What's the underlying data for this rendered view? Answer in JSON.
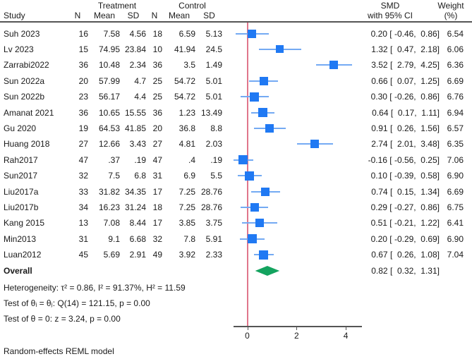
{
  "header": {
    "study": "Study",
    "treatment": "Treatment",
    "control": "Control",
    "n": "N",
    "mean": "Mean",
    "sd": "SD",
    "smd_line1": "SMD",
    "smd_line2": "with 95% CI",
    "weight_line1": "Weight",
    "weight_line2": "(%)"
  },
  "chart_data": {
    "type": "forest",
    "effect_measure": "SMD",
    "x_ticks": [
      0,
      2,
      4
    ],
    "x_range": [
      -0.6,
      4.6
    ],
    "zero_line": 0,
    "studies": [
      {
        "name": "Suh 2023",
        "t_n": "16",
        "t_mean": "7.58",
        "t_sd": "4.56",
        "c_n": "18",
        "c_mean": "6.59",
        "c_sd": "5.13",
        "est": 0.2,
        "lo": -0.46,
        "hi": 0.86,
        "smd_label": "0.20 [ -0.46,  0.86]",
        "weight": "6.54",
        "weight_num": 6.54
      },
      {
        "name": "Lv 2023",
        "t_n": "15",
        "t_mean": "74.95",
        "t_sd": "23.84",
        "c_n": "10",
        "c_mean": "41.94",
        "c_sd": "24.5",
        "est": 1.32,
        "lo": 0.47,
        "hi": 2.18,
        "smd_label": "1.32 [  0.47,  2.18]",
        "weight": "6.06",
        "weight_num": 6.06
      },
      {
        "name": "Zarrabi2022",
        "t_n": "36",
        "t_mean": "10.48",
        "t_sd": "2.34",
        "c_n": "36",
        "c_mean": "3.5",
        "c_sd": "1.49",
        "est": 3.52,
        "lo": 2.79,
        "hi": 4.25,
        "smd_label": "3.52 [  2.79,  4.25]",
        "weight": "6.36",
        "weight_num": 6.36
      },
      {
        "name": "Sun 2022a",
        "t_n": "20",
        "t_mean": "57.99",
        "t_sd": "4.7",
        "c_n": "25",
        "c_mean": "54.72",
        "c_sd": "5.01",
        "est": 0.66,
        "lo": 0.07,
        "hi": 1.25,
        "smd_label": "0.66 [  0.07,  1.25]",
        "weight": "6.69",
        "weight_num": 6.69
      },
      {
        "name": "Sun 2022b",
        "t_n": "23",
        "t_mean": "56.17",
        "t_sd": "4.4",
        "c_n": "25",
        "c_mean": "54.72",
        "c_sd": "5.01",
        "est": 0.3,
        "lo": -0.26,
        "hi": 0.86,
        "smd_label": "0.30 [ -0.26,  0.86]",
        "weight": "6.76",
        "weight_num": 6.76
      },
      {
        "name": "Amanat 2021",
        "t_n": "36",
        "t_mean": "10.65",
        "t_sd": "15.55",
        "c_n": "36",
        "c_mean": "1.23",
        "c_sd": "13.49",
        "est": 0.64,
        "lo": 0.17,
        "hi": 1.11,
        "smd_label": "0.64 [  0.17,  1.11]",
        "weight": "6.94",
        "weight_num": 6.94
      },
      {
        "name": "Gu 2020",
        "t_n": "19",
        "t_mean": "64.53",
        "t_sd": "41.85",
        "c_n": "20",
        "c_mean": "36.8",
        "c_sd": "8.8",
        "est": 0.91,
        "lo": 0.26,
        "hi": 1.56,
        "smd_label": "0.91 [  0.26,  1.56]",
        "weight": "6.57",
        "weight_num": 6.57
      },
      {
        "name": "Huang 2018",
        "t_n": "27",
        "t_mean": "12.66",
        "t_sd": "3.43",
        "c_n": "27",
        "c_mean": "4.81",
        "c_sd": "2.03",
        "est": 2.74,
        "lo": 2.01,
        "hi": 3.48,
        "smd_label": "2.74 [  2.01,  3.48]",
        "weight": "6.35",
        "weight_num": 6.35
      },
      {
        "name": "Rah2017",
        "t_n": "47",
        "t_mean": ".37",
        "t_sd": ".19",
        "c_n": "47",
        "c_mean": ".4",
        "c_sd": ".19",
        "est": -0.16,
        "lo": -0.56,
        "hi": 0.25,
        "smd_label": "-0.16 [ -0.56,  0.25]",
        "weight": "7.06",
        "weight_num": 7.06
      },
      {
        "name": "Sun2017",
        "t_n": "32",
        "t_mean": "7.5",
        "t_sd": "6.8",
        "c_n": "31",
        "c_mean": "6.9",
        "c_sd": "5.5",
        "est": 0.1,
        "lo": -0.39,
        "hi": 0.58,
        "smd_label": "0.10 [ -0.39,  0.58]",
        "weight": "6.90",
        "weight_num": 6.9
      },
      {
        "name": "Liu2017a",
        "t_n": "33",
        "t_mean": "31.82",
        "t_sd": "34.35",
        "c_n": "17",
        "c_mean": "7.25",
        "c_sd": "28.76",
        "est": 0.74,
        "lo": 0.15,
        "hi": 1.34,
        "smd_label": "0.74 [  0.15,  1.34]",
        "weight": "6.69",
        "weight_num": 6.69
      },
      {
        "name": "Liu2017b",
        "t_n": "34",
        "t_mean": "16.23",
        "t_sd": "31.24",
        "c_n": "18",
        "c_mean": "7.25",
        "c_sd": "28.76",
        "est": 0.29,
        "lo": -0.27,
        "hi": 0.86,
        "smd_label": "0.29 [ -0.27,  0.86]",
        "weight": "6.75",
        "weight_num": 6.75
      },
      {
        "name": "Kang 2015",
        "t_n": "13",
        "t_mean": "7.08",
        "t_sd": "8.44",
        "c_n": "17",
        "c_mean": "3.85",
        "c_sd": "3.75",
        "est": 0.51,
        "lo": -0.21,
        "hi": 1.22,
        "smd_label": "0.51 [ -0.21,  1.22]",
        "weight": "6.41",
        "weight_num": 6.41
      },
      {
        "name": "Min2013",
        "t_n": "31",
        "t_mean": "9.1",
        "t_sd": "6.68",
        "c_n": "32",
        "c_mean": "7.8",
        "c_sd": "5.91",
        "est": 0.2,
        "lo": -0.29,
        "hi": 0.69,
        "smd_label": "0.20 [ -0.29,  0.69]",
        "weight": "6.90",
        "weight_num": 6.9
      },
      {
        "name": "Luan2012",
        "t_n": "45",
        "t_mean": "5.69",
        "t_sd": "2.91",
        "c_n": "49",
        "c_mean": "3.92",
        "c_sd": "2.33",
        "est": 0.67,
        "lo": 0.26,
        "hi": 1.08,
        "smd_label": "0.67 [  0.26,  1.08]",
        "weight": "7.04",
        "weight_num": 7.04
      }
    ],
    "overall": {
      "label": "Overall",
      "est": 0.82,
      "lo": 0.32,
      "hi": 1.31,
      "smd_label": "0.82 [  0.32,  1.31]"
    },
    "notes": {
      "heterogeneity": "Heterogeneity: τ² = 0.86, I² = 91.37%, H² = 11.59",
      "test_theta": "Test of θᵢ = θⱼ: Q(14) = 121.15, p = 0.00",
      "test_zero": "Test of θ = 0: z = 3.24, p = 0.00"
    },
    "footnote": "Random-effects REML model",
    "colors": {
      "marker": "#2079f3",
      "ci_line": "#74aaf3",
      "diamond": "#14a35f",
      "zero_line": "#e0768c",
      "axis": "#555555",
      "text": "#1a1a1a"
    }
  }
}
